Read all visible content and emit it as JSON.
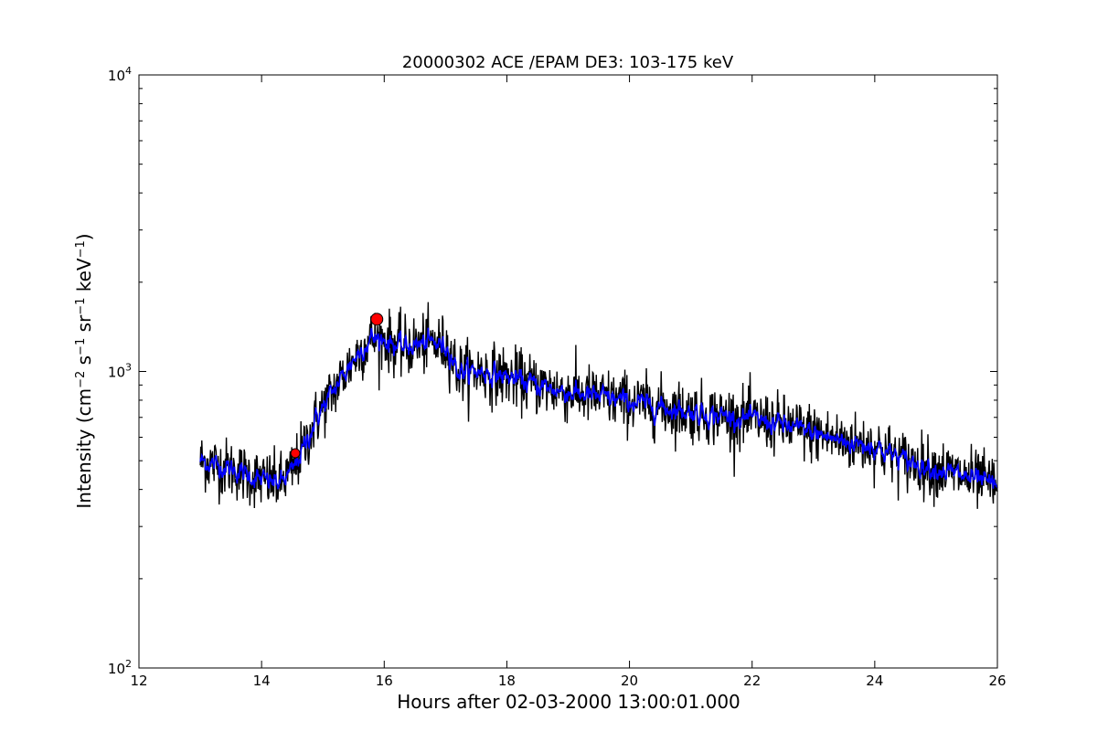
{
  "chart_data": {
    "type": "line",
    "title": "20000302 ACE /EPAM DE3: 103-175 keV",
    "xlabel": "Hours after 02-03-2000 13:00:01.000",
    "ylabel_main": "Intensity (cm",
    "ylabel_parts": [
      {
        "text": "Intensity (cm",
        "sup": ""
      },
      {
        "text": "",
        "sup": "−2"
      },
      {
        "text": " s",
        "sup": ""
      },
      {
        "text": "",
        "sup": "−1"
      },
      {
        "text": " sr",
        "sup": ""
      },
      {
        "text": "",
        "sup": "−1"
      },
      {
        "text": " keV",
        "sup": ""
      },
      {
        "text": "",
        "sup": "−1"
      },
      {
        "text": ")",
        "sup": ""
      }
    ],
    "xlim": [
      12,
      26
    ],
    "ylim": [
      100,
      10000
    ],
    "yscale": "log",
    "grid": false,
    "xticks": [
      {
        "value": 12,
        "label": "12"
      },
      {
        "value": 14,
        "label": "14"
      },
      {
        "value": 16,
        "label": "16"
      },
      {
        "value": 18,
        "label": "18"
      },
      {
        "value": 20,
        "label": "20"
      },
      {
        "value": 22,
        "label": "22"
      },
      {
        "value": 24,
        "label": "24"
      },
      {
        "value": 26,
        "label": "26"
      }
    ],
    "yticks": [
      {
        "value": 100,
        "base": "10",
        "exp": "2"
      },
      {
        "value": 1000,
        "base": "10",
        "exp": "3"
      },
      {
        "value": 10000,
        "base": "10",
        "exp": "4"
      }
    ],
    "colors": {
      "raw": "#000000",
      "smoothed": "#0000ff",
      "marker": "#ff0000"
    },
    "trend": {
      "x": [
        13.0,
        13.5,
        14.0,
        14.3,
        14.5,
        14.7,
        14.9,
        15.2,
        15.5,
        15.8,
        16.0,
        16.3,
        16.5,
        16.8,
        17.05,
        17.2,
        17.6,
        18.0,
        18.5,
        19.0,
        19.5,
        20.0,
        20.5,
        21.0,
        21.5,
        22.0,
        22.5,
        23.0,
        23.5,
        24.0,
        24.5,
        25.0,
        25.5,
        26.0
      ],
      "y": [
        500,
        470,
        430,
        420,
        460,
        560,
        700,
        880,
        1100,
        1300,
        1280,
        1200,
        1230,
        1250,
        1200,
        1000,
        1000,
        960,
        900,
        850,
        820,
        790,
        760,
        730,
        710,
        690,
        660,
        620,
        580,
        560,
        500,
        470,
        440,
        410
      ]
    },
    "markers": [
      {
        "x": 14.55,
        "y": 530
      },
      {
        "x": 15.88,
        "y": 1500
      }
    ]
  }
}
